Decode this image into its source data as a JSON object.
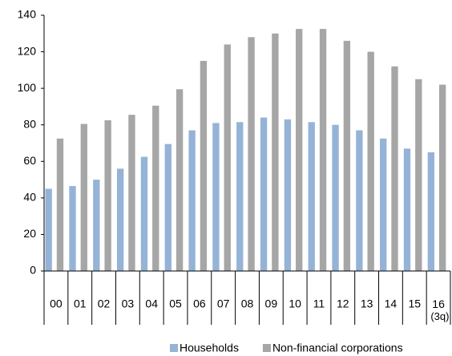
{
  "chart_data": {
    "type": "bar",
    "categories": [
      "00",
      "01",
      "02",
      "03",
      "04",
      "05",
      "06",
      "07",
      "08",
      "09",
      "10",
      "11",
      "12",
      "13",
      "14",
      "15",
      "16 (3q)"
    ],
    "series": [
      {
        "name": "Households",
        "color": "#95b3d7",
        "values": [
          45,
          46.5,
          50,
          56,
          62.5,
          69.5,
          77,
          81,
          81.5,
          84,
          83,
          81.5,
          80,
          77,
          72.5,
          67,
          65
        ]
      },
      {
        "name": "Non-financial corporations",
        "color": "#a6a6a6",
        "values": [
          72.5,
          80.5,
          82.5,
          85.5,
          90.5,
          99.5,
          115,
          124,
          128,
          130,
          132.5,
          132.5,
          126,
          120,
          112,
          105,
          102
        ]
      }
    ],
    "ylim": [
      0,
      140
    ],
    "yticks": [
      0,
      20,
      40,
      60,
      80,
      100,
      120,
      140
    ],
    "legend": "bottom"
  }
}
